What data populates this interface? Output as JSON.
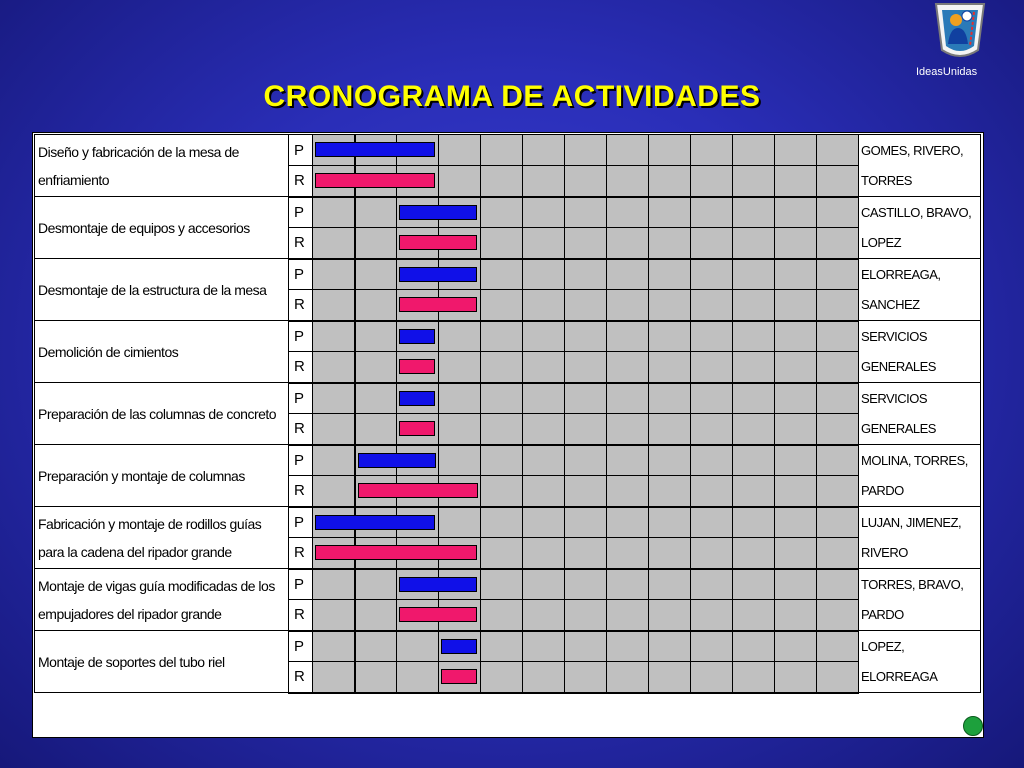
{
  "title": "CRONOGRAMA DE ACTIVIDADES",
  "logo_text": "IdeasUnidas",
  "colors": {
    "planned": "#1010e8",
    "real": "#f0186c",
    "grid": "#c0c0c0",
    "title": "#ffff00"
  },
  "week_count": 13,
  "activities": [
    {
      "name": "Diseño y fabricación de la mesa de enfriamiento",
      "resp": "GOMES, RIVERO, TORRES",
      "p": [
        0,
        3
      ],
      "r": [
        0,
        3
      ]
    },
    {
      "name": "Desmontaje de equipos y accesorios",
      "resp": "CASTILLO, BRAVO, LOPEZ",
      "p": [
        2,
        4
      ],
      "r": [
        2,
        4
      ]
    },
    {
      "name": "Desmontaje de la estructura de la mesa",
      "resp": "ELORREAGA, SANCHEZ",
      "p": [
        2,
        4
      ],
      "r": [
        2,
        4
      ]
    },
    {
      "name": "Demolición de cimientos",
      "resp": "SERVICIOS GENERALES",
      "p": [
        2,
        3
      ],
      "r": [
        2,
        3
      ]
    },
    {
      "name": "Preparación de las columnas de concreto",
      "resp": "SERVICIOS GENERALES",
      "p": [
        2,
        3
      ],
      "r": [
        2,
        3
      ]
    },
    {
      "name": "Preparación y montaje de columnas",
      "resp": "MOLINA, TORRES, PARDO",
      "p": [
        1,
        3
      ],
      "r": [
        1,
        4
      ]
    },
    {
      "name": "Fabricación y montaje de rodillos guías para la cadena del ripador grande",
      "resp": "LUJAN, JIMENEZ, RIVERO",
      "p": [
        0,
        3
      ],
      "r": [
        0,
        4
      ]
    },
    {
      "name": "Montaje de vigas guía modificadas de los empujadores del ripador grande",
      "resp": "TORRES, BRAVO, PARDO",
      "p": [
        2,
        4
      ],
      "r": [
        2,
        4
      ]
    },
    {
      "name": "Montaje de soportes del tubo riel",
      "resp": "LOPEZ, ELORREAGA",
      "p": [
        3,
        4
      ],
      "r": [
        3,
        4
      ]
    }
  ],
  "labels": {
    "p": "P",
    "r": "R"
  }
}
